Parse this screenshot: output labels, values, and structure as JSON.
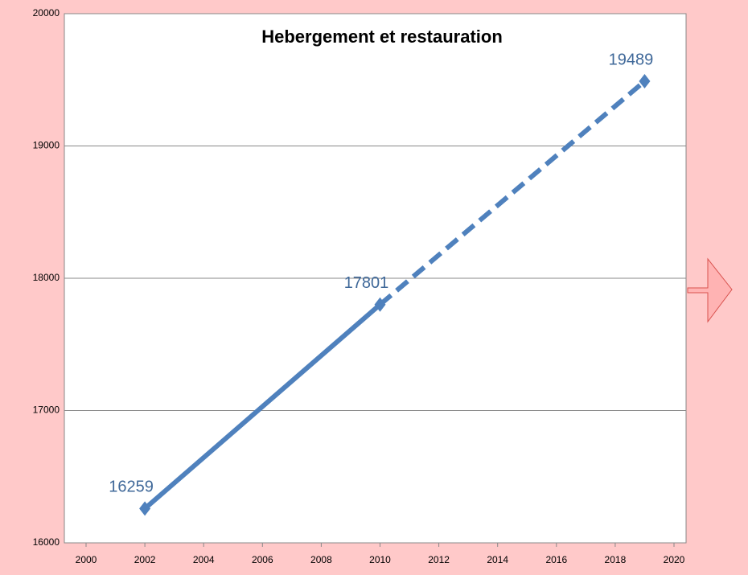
{
  "chart_data": {
    "type": "line",
    "title": "Hebergement et restauration",
    "x": [
      2002,
      2010,
      2019
    ],
    "series": [
      {
        "color": "#4f81bd",
        "values": [
          16259,
          17801,
          19489
        ],
        "segment_styles": [
          "solid",
          "dashed"
        ]
      }
    ],
    "xlim": [
      2000,
      2020
    ],
    "xticks": [
      2000,
      2002,
      2004,
      2006,
      2008,
      2010,
      2012,
      2014,
      2016,
      2018,
      2020
    ],
    "ylim": [
      16000,
      20000
    ],
    "yticks": [
      16000,
      17000,
      18000,
      19000,
      20000
    ],
    "grid": true
  }
}
